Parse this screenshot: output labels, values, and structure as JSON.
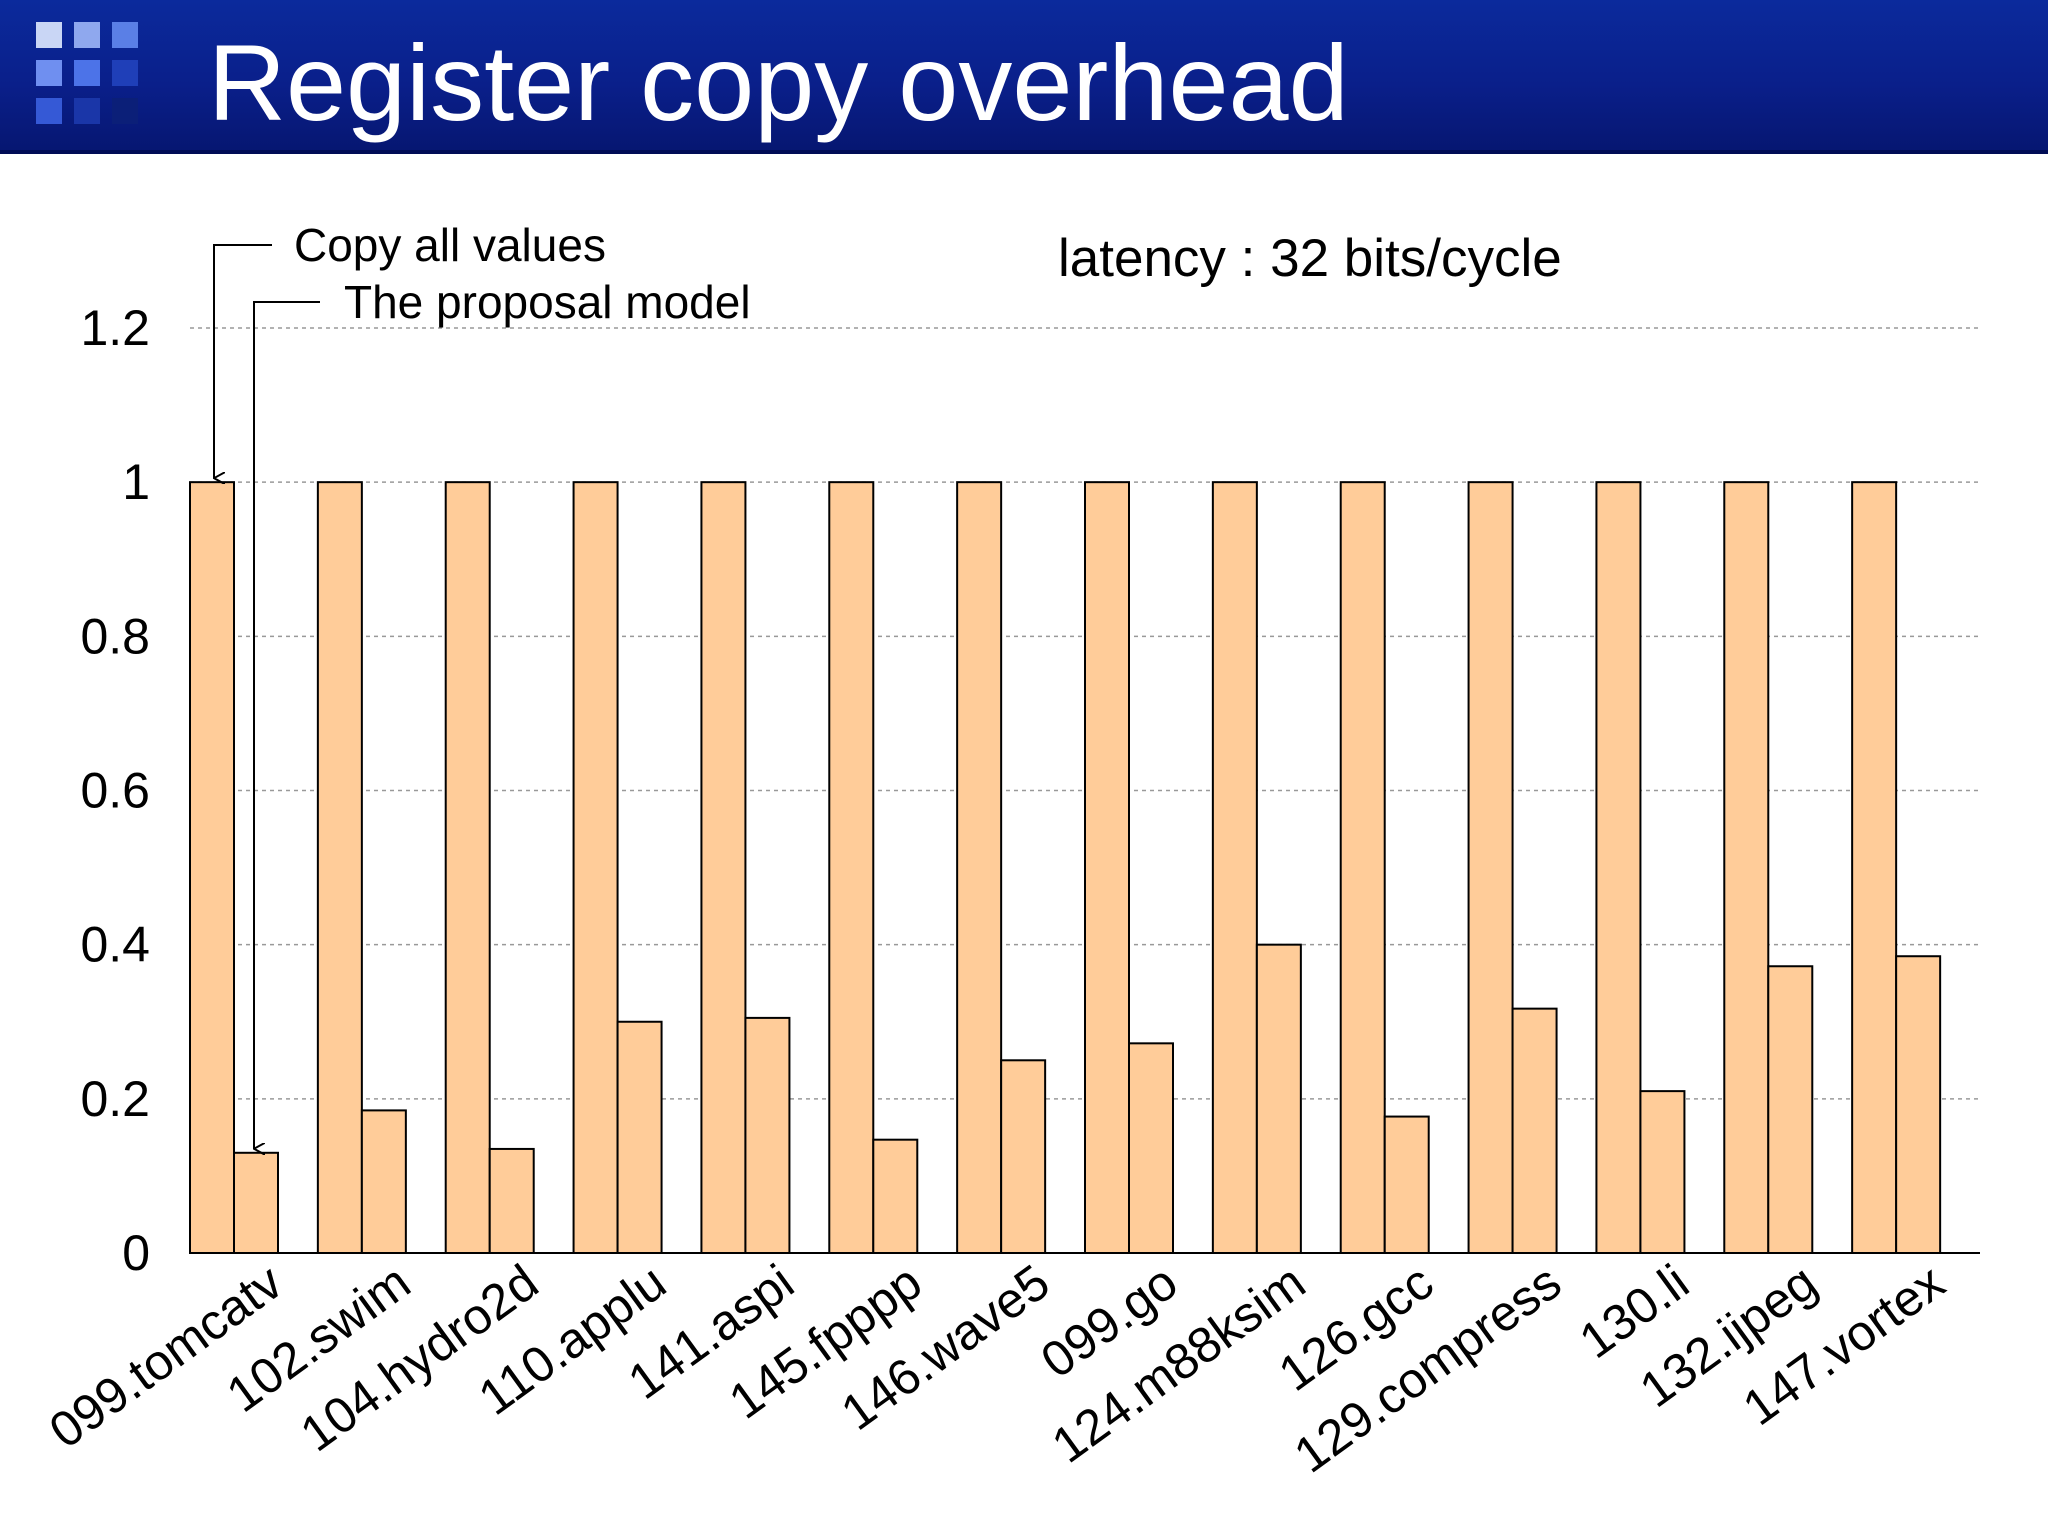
{
  "slide": {
    "title": "Register copy overhead"
  },
  "colors": {
    "title_bar": "#0a1f8a",
    "bar_fill": "#ffcc99",
    "bar_stroke": "#000000",
    "grid": "#999999"
  },
  "chart_data": {
    "type": "bar",
    "annotation": "latency : 32 bits/cycle",
    "categories": [
      "099.tomcatv",
      "102.swim",
      "104.hydro2d",
      "110.applu",
      "141.aspi",
      "145.fpppp",
      "146.wave5",
      "099.go",
      "124.m88ksim",
      "126.gcc",
      "129.compress",
      "130.li",
      "132.ijpeg",
      "147.vortex"
    ],
    "series": [
      {
        "name": "Copy all values",
        "values": [
          1,
          1,
          1,
          1,
          1,
          1,
          1,
          1,
          1,
          1,
          1,
          1,
          1,
          1
        ]
      },
      {
        "name": "The proposal model",
        "values": [
          0.13,
          0.185,
          0.135,
          0.3,
          0.305,
          0.147,
          0.25,
          0.272,
          0.4,
          0.177,
          0.317,
          0.21,
          0.372,
          0.385
        ]
      }
    ],
    "yticks": [
      "0",
      "0.2",
      "0.4",
      "0.6",
      "0.8",
      "1",
      "1.2"
    ],
    "ylim": [
      0,
      1.2
    ],
    "grid": true,
    "legend_placement": "top-left, arrow labels pointing to first pair of bars",
    "xlabel": "",
    "ylabel": ""
  }
}
